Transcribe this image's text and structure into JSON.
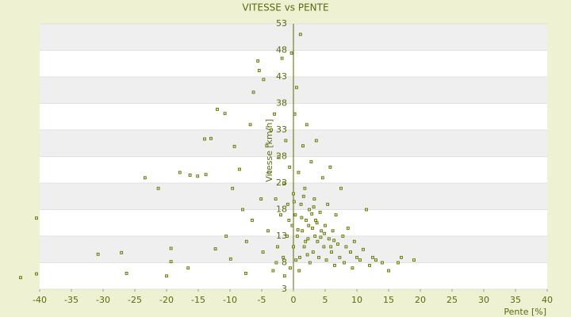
{
  "chart_data": {
    "type": "scatter",
    "title": "VITESSE vs PENTE",
    "x_label": "Pente [%]",
    "y_label": "Vitesse [km/h]",
    "color": "#556b00",
    "xlim": [
      -40,
      40
    ],
    "ylim": [
      3,
      53
    ],
    "xticks": [
      -40,
      -35,
      -30,
      -25,
      -20,
      -15,
      -10,
      -5,
      0,
      5,
      10,
      15,
      20,
      25,
      30,
      35,
      40
    ],
    "yticks": [
      3,
      8,
      13,
      18,
      23,
      28,
      33,
      38,
      43,
      48,
      53
    ],
    "grid": true,
    "x": [
      -43.0,
      -40.5,
      -40.5,
      -30.8,
      -27.1,
      -26.3,
      -23.4,
      -21.3,
      -20.0,
      -19.3,
      -19.3,
      -17.9,
      -16.6,
      -16.3,
      -15.1,
      -13.8,
      -14.0,
      -13.0,
      -12.0,
      -12.3,
      -10.8,
      -10.6,
      -9.9,
      -9.6,
      -9.3,
      -8.5,
      -8.0,
      -7.5,
      -7.4,
      -6.8,
      -6.5,
      -6.3,
      -5.6,
      -5.4,
      -5.1,
      -4.8,
      -4.7,
      -4.2,
      -4.0,
      -3.8,
      -3.5,
      -3.2,
      -3.0,
      -2.8,
      -2.5,
      -2.3,
      -2.0,
      -1.8,
      -1.6,
      -1.5,
      -1.2,
      -1.0,
      -0.9,
      -0.6,
      -0.5,
      -0.3,
      -0.2,
      0,
      0,
      0.2,
      0.3,
      0.5,
      0.6,
      0.8,
      1.0,
      1.1,
      1.2,
      1.4,
      1.5,
      1.7,
      1.8,
      2.0,
      2.1,
      2.3,
      2.5,
      2.6,
      2.8,
      3.0,
      3.1,
      3.3,
      3.5,
      3.6,
      3.8,
      4.0,
      4.2,
      4.4,
      4.6,
      4.8,
      5.0,
      5.2,
      5.4,
      5.6,
      5.8,
      6.0,
      6.2,
      6.5,
      6.7,
      7.0,
      7.3,
      7.5,
      7.8,
      8.0,
      8.3,
      8.6,
      9.0,
      9.3,
      9.6,
      10.0,
      10.5,
      11.0,
      11.5,
      12.0,
      12.5,
      13.0,
      14.0,
      15.0,
      16.5,
      17.0,
      19.0,
      0.4,
      1.3,
      2.4,
      3.4,
      4.3,
      0.7,
      1.9,
      2.9,
      -0.7,
      0.1,
      1.6,
      2.2,
      3.7,
      4.9,
      5.9,
      0.9,
      -1.4,
      -2.7,
      6.4,
      3.2
    ],
    "y": [
      5.2,
      5.9,
      16.4,
      9.6,
      9.9,
      6.0,
      24.0,
      22.0,
      5.5,
      8.2,
      10.7,
      25.0,
      7.0,
      24.5,
      24.3,
      24.6,
      31.3,
      31.4,
      36.9,
      10.6,
      36.1,
      13.0,
      8.7,
      22.0,
      29.9,
      25.6,
      18.0,
      6.0,
      12.0,
      34.0,
      16.0,
      40.1,
      46.0,
      44.2,
      20.0,
      10.0,
      42.5,
      30.0,
      14.0,
      25.0,
      33.0,
      6.5,
      36.0,
      20.0,
      11.0,
      28.0,
      17.0,
      46.5,
      9.0,
      23.0,
      31.0,
      13.0,
      19.0,
      26.0,
      7.0,
      47.5,
      15.0,
      21.0,
      11.0,
      36.0,
      17.0,
      41.0,
      13.0,
      25.0,
      9.0,
      51.0,
      19.0,
      14.0,
      30.0,
      11.0,
      22.0,
      16.0,
      34.0,
      12.5,
      18.0,
      8.0,
      27.0,
      14.5,
      10.0,
      20.0,
      16.0,
      31.0,
      12.0,
      9.0,
      17.5,
      14.0,
      24.0,
      11.0,
      15.0,
      8.5,
      19.0,
      12.5,
      26.0,
      10.0,
      14.0,
      7.5,
      17.0,
      11.5,
      9.0,
      22.0,
      13.0,
      8.0,
      11.0,
      14.5,
      10.0,
      7.0,
      12.0,
      9.0,
      8.5,
      10.5,
      18.0,
      7.5,
      9.0,
      8.5,
      8.0,
      6.5,
      8.0,
      9.0,
      8.5,
      8.5,
      16.5,
      15.0,
      13.0,
      12.8,
      14.2,
      12.0,
      17.2,
      16.0,
      19.5,
      20.5,
      9.5,
      15.5,
      13.5,
      11.0,
      6.5,
      5.5,
      8.0,
      12.2,
      18.5
    ]
  }
}
